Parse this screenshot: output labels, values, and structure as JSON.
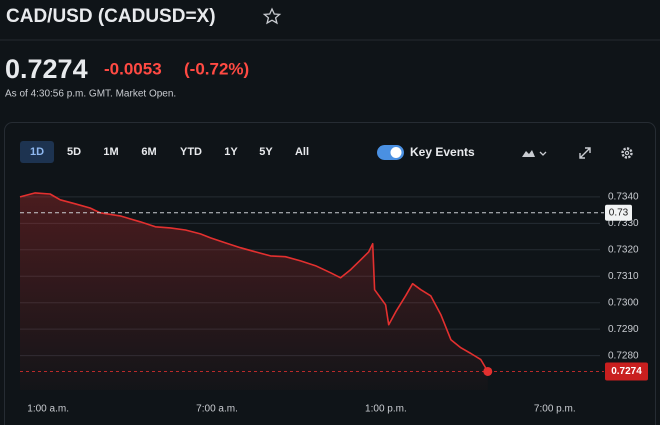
{
  "quote": {
    "title": "CAD/USD (CADUSD=X)",
    "price": "0.7274",
    "change": "-0.0053",
    "change_percent": "(-0.72%)",
    "timestamp": "As of 4:30:56 p.m. GMT. Market Open."
  },
  "controls": {
    "ranges": [
      "1D",
      "5D",
      "1M",
      "6M",
      "YTD",
      "1Y",
      "5Y",
      "All"
    ],
    "key_events": "Key Events"
  },
  "chart_data": {
    "type": "line",
    "x": [
      0,
      0.54,
      1.07,
      1.43,
      1.96,
      2.49,
      2.85,
      3.56,
      4.27,
      4.81,
      5.34,
      5.88,
      6.41,
      6.77,
      7.3,
      7.83,
      8.37,
      8.9,
      9.43,
      9.97,
      10.5,
      11.04,
      11.39,
      11.75,
      12.1,
      12.39,
      12.53,
      12.6,
      12.99,
      13.1,
      13.35,
      13.7,
      13.95,
      14.24,
      14.59,
      14.95,
      15.31,
      15.66,
      16.02,
      16.37,
      16.62
    ],
    "series": [
      {
        "color": "#e3302f",
        "values": [
          0.734,
          0.73415,
          0.73411,
          0.73389,
          0.73374,
          0.73358,
          0.7334,
          0.73328,
          0.73306,
          0.73287,
          0.73283,
          0.73275,
          0.7326,
          0.73245,
          0.73226,
          0.73208,
          0.73192,
          0.73177,
          0.73174,
          0.73158,
          0.7314,
          0.73113,
          0.73094,
          0.73125,
          0.73162,
          0.73192,
          0.73223,
          0.73049,
          0.72992,
          0.72917,
          0.72966,
          0.73026,
          0.73072,
          0.73049,
          0.73026,
          0.72955,
          0.7286,
          0.7283,
          0.72808,
          0.72785,
          0.7274
        ]
      }
    ],
    "xlim": [
      0,
      20.5
    ],
    "ylim": [
      0.7267,
      0.73445
    ],
    "xticks": [
      {
        "value": 1,
        "label": "1:00 a.m."
      },
      {
        "value": 7,
        "label": "7:00 a.m."
      },
      {
        "value": 13,
        "label": "1:00 p.m."
      },
      {
        "value": 19,
        "label": "7:00 p.m."
      }
    ],
    "yticks": [
      {
        "value": 0.728,
        "label": "0.7280"
      },
      {
        "value": 0.729,
        "label": "0.7290"
      },
      {
        "value": 0.73,
        "label": "0.7300"
      },
      {
        "value": 0.731,
        "label": "0.7310"
      },
      {
        "value": 0.732,
        "label": "0.7320"
      },
      {
        "value": 0.733,
        "label": "0.7330"
      },
      {
        "value": 0.734,
        "label": "0.7340"
      }
    ],
    "grid": true,
    "reference_line": {
      "value": 0.7334,
      "label": "0.73"
    },
    "last_price": 0.7274
  }
}
